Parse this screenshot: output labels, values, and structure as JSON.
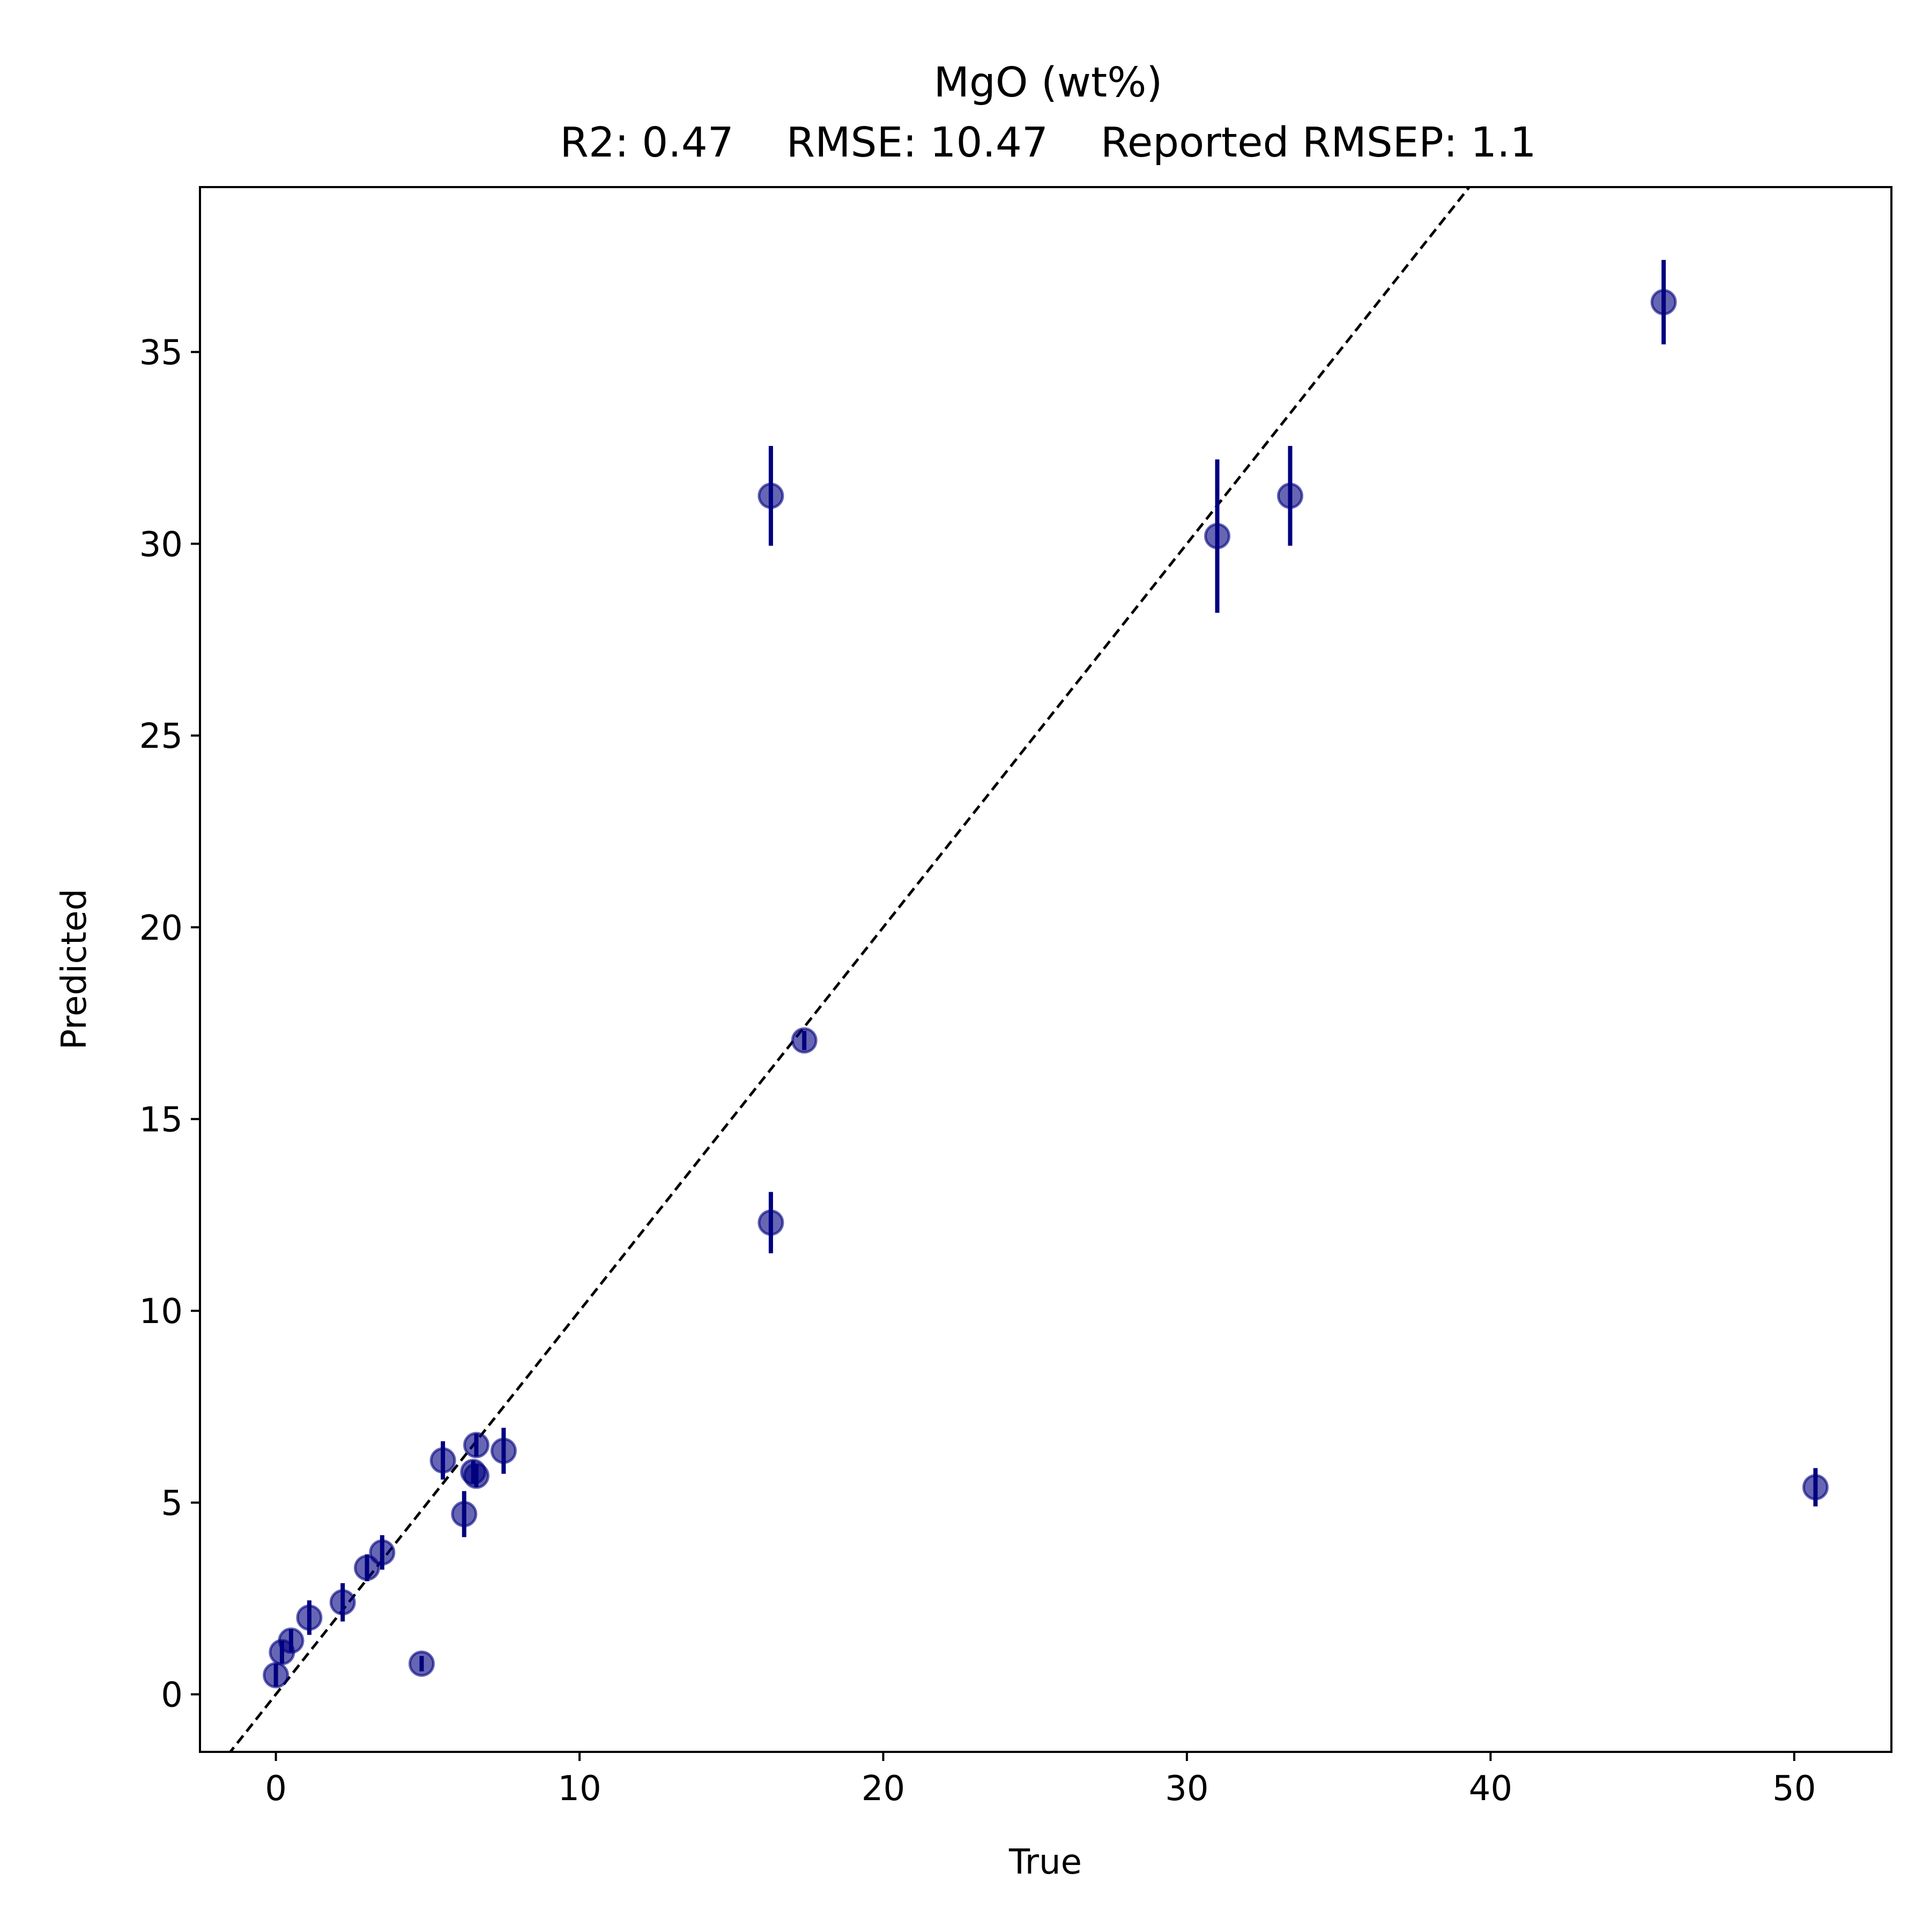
{
  "chart_data": {
    "type": "scatter",
    "title": "MgO (wt%)",
    "subtitle": "R2: 0.47    RMSE: 10.47    Reported RMSEP: 1.1",
    "xlabel": "True",
    "ylabel": "Predicted",
    "xlim": [
      -2.5,
      53.2
    ],
    "ylim": [
      -1.5,
      39.3
    ],
    "x_ticks": [
      0,
      10,
      20,
      30,
      40,
      50
    ],
    "y_ticks": [
      0,
      5,
      10,
      15,
      20,
      25,
      30,
      35
    ],
    "grid": false,
    "legend": "none",
    "reference_line": {
      "style": "dashed",
      "slope": 1,
      "intercept": 0,
      "color": "#000000"
    },
    "marker_color": "#000080",
    "errorbar_color": "#000080",
    "series": [
      {
        "points": [
          {
            "x": 0.0,
            "y": 0.5,
            "err": 0.3
          },
          {
            "x": 0.2,
            "y": 1.1,
            "err": 0.3
          },
          {
            "x": 0.5,
            "y": 1.4,
            "err": 0.3
          },
          {
            "x": 1.1,
            "y": 2.0,
            "err": 0.45
          },
          {
            "x": 2.2,
            "y": 2.4,
            "err": 0.5
          },
          {
            "x": 3.0,
            "y": 3.3,
            "err": 0.35
          },
          {
            "x": 3.5,
            "y": 3.7,
            "err": 0.45
          },
          {
            "x": 4.8,
            "y": 0.8,
            "err": 0.2
          },
          {
            "x": 5.5,
            "y": 6.1,
            "err": 0.5
          },
          {
            "x": 6.2,
            "y": 4.7,
            "err": 0.6
          },
          {
            "x": 6.5,
            "y": 5.8,
            "err": 0.3
          },
          {
            "x": 6.6,
            "y": 6.5,
            "err": 0.3
          },
          {
            "x": 6.6,
            "y": 5.7,
            "err": 0.3
          },
          {
            "x": 7.5,
            "y": 6.35,
            "err": 0.6
          },
          {
            "x": 16.3,
            "y": 12.3,
            "err": 0.8
          },
          {
            "x": 17.4,
            "y": 17.05,
            "err": 0.25
          },
          {
            "x": 16.3,
            "y": 31.25,
            "err": 1.3
          },
          {
            "x": 31.0,
            "y": 30.2,
            "err": 2.0
          },
          {
            "x": 33.4,
            "y": 31.25,
            "err": 1.3
          },
          {
            "x": 45.7,
            "y": 36.3,
            "err": 1.1
          },
          {
            "x": 50.7,
            "y": 5.4,
            "err": 0.5
          }
        ]
      }
    ]
  }
}
